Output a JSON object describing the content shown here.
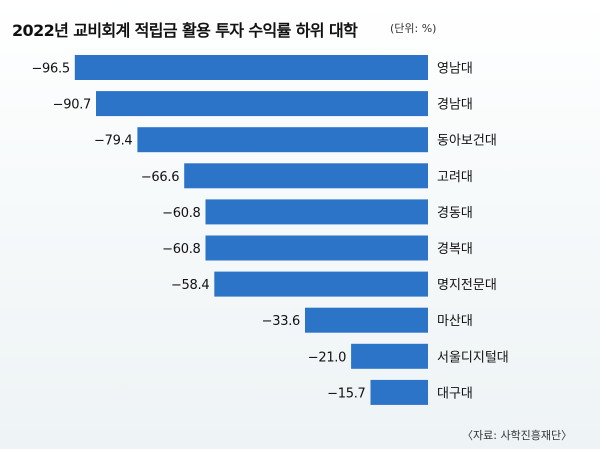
{
  "chart_data": {
    "type": "bar",
    "orientation": "horizontal",
    "title": "2022년 교비회계 적립금 활용 투자 수익률 하위 대학",
    "unit_label": "(단위: %)",
    "categories": [
      "영남대",
      "경남대",
      "동아보건대",
      "고려대",
      "경동대",
      "경복대",
      "명지전문대",
      "마산대",
      "서울디지털대",
      "대구대"
    ],
    "values": [
      -96.5,
      -90.7,
      -79.4,
      -66.6,
      -60.8,
      -60.8,
      -58.4,
      -33.6,
      -21.0,
      -15.7
    ],
    "value_labels": [
      "−96.5",
      "−90.7",
      "−79.4",
      "−66.6",
      "−60.8",
      "−60.8",
      "−58.4",
      "−33.6",
      "−21.0",
      "−15.7"
    ],
    "xlim": [
      -100,
      0
    ],
    "grid": false,
    "legend": "none",
    "source": "〈자료: 사학진흥재단〉",
    "colors": {
      "bar": "#2b74c7"
    }
  }
}
